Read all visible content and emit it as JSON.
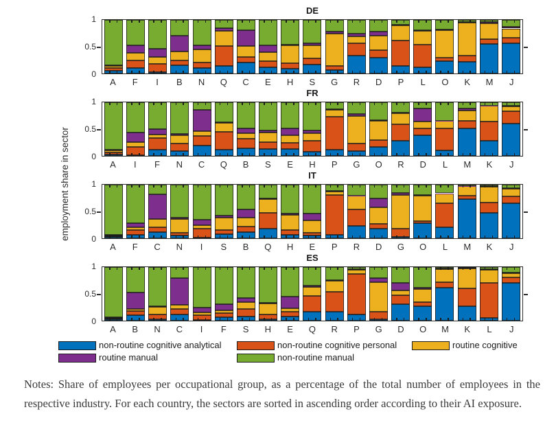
{
  "figure": {
    "ylabel": "employment share in sector",
    "yticks": [
      "1",
      "0.5",
      "0"
    ],
    "series": [
      {
        "name": "non-routine cognitive analytical",
        "color": "#0072BD"
      },
      {
        "name": "non-routine cognitive personal",
        "color": "#D95319"
      },
      {
        "name": "routine cognitive",
        "color": "#EDB120"
      },
      {
        "name": "routine manual",
        "color": "#7E2F8E"
      },
      {
        "name": "non-routine manual",
        "color": "#77AC30"
      }
    ],
    "legend_position": "bottom",
    "grid": "off"
  },
  "chart_data": [
    {
      "type": "bar",
      "stacked": true,
      "title": "DE",
      "ylim": [
        0,
        1
      ],
      "categories": [
        "A",
        "F",
        "I",
        "B",
        "N",
        "Q",
        "C",
        "E",
        "H",
        "S",
        "G",
        "R",
        "D",
        "P",
        "L",
        "O",
        "K",
        "M",
        "J"
      ],
      "series": [
        {
          "name": "non-routine cognitive analytical",
          "values": [
            0.05,
            0.1,
            0.02,
            0.15,
            0.1,
            0.14,
            0.21,
            0.11,
            0.09,
            0.17,
            0.06,
            0.33,
            0.3,
            0.14,
            0.11,
            0.23,
            0.22,
            0.55,
            0.57
          ]
        },
        {
          "name": "non-routine cognitive personal",
          "values": [
            0.05,
            0.14,
            0.16,
            0.09,
            0.11,
            0.37,
            0.1,
            0.12,
            0.1,
            0.11,
            0.08,
            0.24,
            0.13,
            0.47,
            0.43,
            0.06,
            0.11,
            0.09,
            0.1
          ]
        },
        {
          "name": "routine cognitive",
          "values": [
            0.04,
            0.14,
            0.13,
            0.17,
            0.24,
            0.29,
            0.2,
            0.17,
            0.33,
            0.25,
            0.61,
            0.12,
            0.28,
            0.29,
            0.26,
            0.52,
            0.62,
            0.29,
            0.17
          ]
        },
        {
          "name": "routine manual",
          "values": [
            0.02,
            0.15,
            0.15,
            0.29,
            0.07,
            0.05,
            0.3,
            0.13,
            0.02,
            0.03,
            0.03,
            0.05,
            0.07,
            0.01,
            0.01,
            0.01,
            0.01,
            0.03,
            0.03
          ]
        },
        {
          "name": "non-routine manual",
          "values": [
            0.84,
            0.47,
            0.54,
            0.3,
            0.48,
            0.15,
            0.19,
            0.47,
            0.46,
            0.44,
            0.22,
            0.26,
            0.22,
            0.09,
            0.19,
            0.18,
            0.04,
            0.04,
            0.13
          ]
        }
      ]
    },
    {
      "type": "bar",
      "stacked": true,
      "title": "FR",
      "ylim": [
        0,
        1
      ],
      "categories": [
        "A",
        "I",
        "F",
        "N",
        "C",
        "Q",
        "B",
        "S",
        "E",
        "H",
        "P",
        "G",
        "O",
        "R",
        "D",
        "L",
        "M",
        "K",
        "J"
      ],
      "series": [
        {
          "name": "non-routine cognitive analytical",
          "values": [
            0.03,
            0.01,
            0.11,
            0.09,
            0.19,
            0.11,
            0.14,
            0.13,
            0.13,
            0.08,
            0.11,
            0.09,
            0.17,
            0.28,
            0.38,
            0.1,
            0.51,
            0.28,
            0.6
          ]
        },
        {
          "name": "non-routine cognitive personal",
          "values": [
            0.04,
            0.16,
            0.22,
            0.14,
            0.18,
            0.34,
            0.18,
            0.13,
            0.12,
            0.2,
            0.62,
            0.14,
            0.13,
            0.31,
            0.13,
            0.41,
            0.15,
            0.36,
            0.23
          ]
        },
        {
          "name": "routine cognitive",
          "values": [
            0.03,
            0.09,
            0.07,
            0.15,
            0.09,
            0.17,
            0.1,
            0.17,
            0.13,
            0.14,
            0.13,
            0.51,
            0.36,
            0.2,
            0.13,
            0.14,
            0.19,
            0.29,
            0.09
          ]
        },
        {
          "name": "routine manual",
          "values": [
            0.02,
            0.18,
            0.1,
            0.03,
            0.4,
            0.01,
            0.09,
            0.05,
            0.13,
            0.05,
            0.01,
            0.04,
            0.01,
            0.02,
            0.25,
            0.01,
            0.04,
            0.01,
            0.01
          ]
        },
        {
          "name": "non-routine manual",
          "values": [
            0.88,
            0.56,
            0.5,
            0.59,
            0.14,
            0.37,
            0.49,
            0.52,
            0.49,
            0.53,
            0.13,
            0.22,
            0.33,
            0.19,
            0.11,
            0.34,
            0.11,
            0.06,
            0.07
          ]
        }
      ]
    },
    {
      "type": "bar",
      "stacked": true,
      "title": "IT",
      "ylim": [
        0,
        1
      ],
      "categories": [
        "A",
        "F",
        "C",
        "N",
        "I",
        "S",
        "B",
        "Q",
        "H",
        "E",
        "P",
        "R",
        "D",
        "G",
        "O",
        "L",
        "M",
        "K",
        "J"
      ],
      "series": [
        {
          "name": "non-routine cognitive analytical",
          "values": [
            0.02,
            0.07,
            0.11,
            0.05,
            0.01,
            0.08,
            0.11,
            0.18,
            0.06,
            0.05,
            0.06,
            0.23,
            0.18,
            0.03,
            0.28,
            0.2,
            0.73,
            0.48,
            0.66
          ]
        },
        {
          "name": "non-routine cognitive personal",
          "values": [
            0.02,
            0.08,
            0.1,
            0.05,
            0.17,
            0.08,
            0.11,
            0.3,
            0.1,
            0.05,
            0.75,
            0.31,
            0.09,
            0.15,
            0.04,
            0.46,
            0.06,
            0.19,
            0.12
          ]
        },
        {
          "name": "routine cognitive",
          "values": [
            0.01,
            0.06,
            0.15,
            0.26,
            0.07,
            0.22,
            0.16,
            0.25,
            0.28,
            0.23,
            0.06,
            0.25,
            0.31,
            0.63,
            0.48,
            0.17,
            0.18,
            0.29,
            0.14
          ]
        },
        {
          "name": "routine manual",
          "values": [
            0.02,
            0.07,
            0.46,
            0.03,
            0.09,
            0.04,
            0.16,
            0.01,
            0.02,
            0.13,
            0.01,
            0.01,
            0.17,
            0.04,
            0.01,
            0.01,
            0.01,
            0.01,
            0.01
          ]
        },
        {
          "name": "non-routine manual",
          "values": [
            0.93,
            0.72,
            0.18,
            0.61,
            0.66,
            0.58,
            0.46,
            0.26,
            0.54,
            0.54,
            0.12,
            0.2,
            0.25,
            0.15,
            0.19,
            0.16,
            0.02,
            0.03,
            0.07
          ]
        }
      ]
    },
    {
      "type": "bar",
      "stacked": true,
      "title": "ES",
      "ylim": [
        0,
        1
      ],
      "categories": [
        "A",
        "B",
        "N",
        "C",
        "I",
        "F",
        "S",
        "H",
        "E",
        "Q",
        "R",
        "P",
        "G",
        "D",
        "O",
        "M",
        "K",
        "L",
        "J"
      ],
      "series": [
        {
          "name": "non-routine cognitive analytical",
          "values": [
            0.02,
            0.1,
            0.03,
            0.11,
            0.01,
            0.07,
            0.08,
            0.03,
            0.08,
            0.17,
            0.17,
            0.11,
            0.02,
            0.31,
            0.27,
            0.62,
            0.27,
            0.05,
            0.7
          ]
        },
        {
          "name": "non-routine cognitive personal",
          "values": [
            0.02,
            0.08,
            0.08,
            0.11,
            0.09,
            0.07,
            0.14,
            0.08,
            0.09,
            0.29,
            0.37,
            0.76,
            0.15,
            0.16,
            0.08,
            0.1,
            0.33,
            0.65,
            0.11
          ]
        },
        {
          "name": "routine cognitive",
          "values": [
            0.01,
            0.04,
            0.15,
            0.08,
            0.05,
            0.05,
            0.12,
            0.21,
            0.06,
            0.17,
            0.21,
            0.08,
            0.55,
            0.1,
            0.24,
            0.24,
            0.38,
            0.25,
            0.08
          ]
        },
        {
          "name": "routine manual",
          "values": [
            0.02,
            0.31,
            0.01,
            0.5,
            0.09,
            0.12,
            0.08,
            0.01,
            0.22,
            0.03,
            0.01,
            0.01,
            0.07,
            0.14,
            0.02,
            0.01,
            0.01,
            0.01,
            0.01
          ]
        },
        {
          "name": "non-routine manual",
          "values": [
            0.93,
            0.47,
            0.73,
            0.2,
            0.76,
            0.69,
            0.58,
            0.67,
            0.55,
            0.34,
            0.24,
            0.04,
            0.21,
            0.29,
            0.39,
            0.03,
            0.01,
            0.04,
            0.1
          ]
        }
      ]
    }
  ],
  "legend": {
    "items": [
      "non-routine cognitive analytical",
      "non-routine cognitive personal",
      "routine cognitive",
      "routine manual",
      "non-routine manual"
    ]
  },
  "notes": "Notes: Share of employees per occupational group, as a percentage of the total number of employees in the respective industry. For each country, the sectors are sorted in ascending order according to their AI exposure."
}
